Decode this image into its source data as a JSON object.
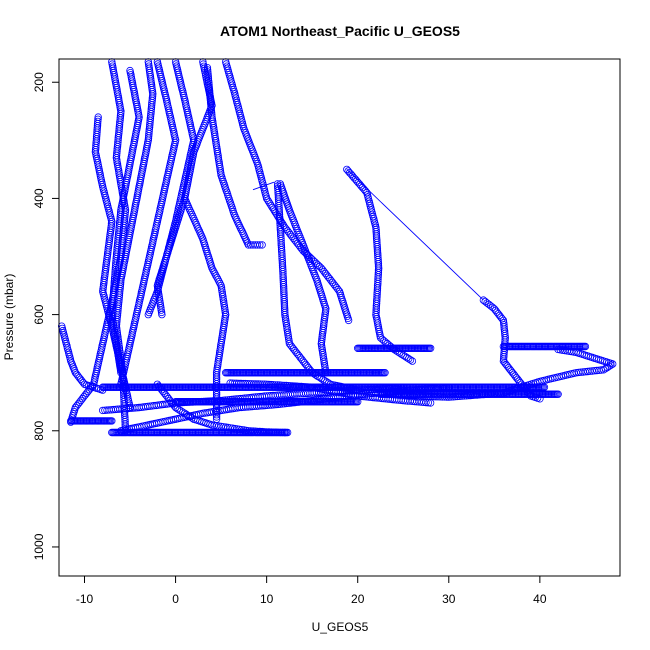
{
  "chart_data": {
    "type": "scatter",
    "title": "ATOM1 Northeast_Pacific U_GEOS5",
    "xlabel": "U_GEOS5",
    "ylabel": "Pressure (mbar)",
    "xlim": [
      -12.8,
      48.8
    ],
    "ylim": [
      1050,
      160
    ],
    "y_reversed": true,
    "x_ticks": [
      -10,
      0,
      10,
      20,
      30,
      40
    ],
    "x_tick_labels": [
      "-10",
      "0",
      "10",
      "20",
      "30",
      "40"
    ],
    "y_ticks": [
      200,
      400,
      600,
      800,
      1000
    ],
    "y_tick_labels": [
      "200",
      "400",
      "600",
      "800",
      "1000"
    ],
    "marker": "open-circle",
    "color": "#0000ff",
    "grid": false,
    "legend": "none",
    "series": [
      {
        "x": [
          -7,
          -6,
          -6.5,
          -5.5,
          -6,
          -7,
          -8,
          -9,
          -11,
          -11.5
        ],
        "y": [
          165,
          250,
          330,
          420,
          500,
          580,
          650,
          720,
          760,
          785
        ]
      },
      {
        "x": [
          -8.5,
          -8.8,
          -8,
          -7,
          -7.5,
          -8,
          -7,
          -6,
          -5
        ],
        "y": [
          260,
          320,
          380,
          440,
          500,
          560,
          620,
          690,
          760
        ]
      },
      {
        "x": [
          -5,
          -4,
          -5,
          -6,
          -6.5,
          -7,
          -6
        ],
        "y": [
          180,
          260,
          340,
          420,
          500,
          600,
          700
        ]
      },
      {
        "x": [
          -3,
          -2.5,
          -3,
          -4,
          -5,
          -6,
          -6.5,
          -5.8,
          -5.5
        ],
        "y": [
          165,
          220,
          300,
          380,
          460,
          540,
          620,
          700,
          800
        ]
      },
      {
        "x": [
          -2,
          -1,
          0,
          -1,
          -2,
          -3,
          -4,
          -5,
          -6
        ],
        "y": [
          165,
          230,
          300,
          370,
          440,
          510,
          580,
          650,
          720
        ]
      },
      {
        "x": [
          0,
          1,
          2,
          1,
          0,
          -1,
          -2,
          -3
        ],
        "y": [
          165,
          230,
          300,
          370,
          440,
          500,
          560,
          600
        ]
      },
      {
        "x": [
          3,
          4,
          2,
          1,
          0,
          -1,
          -2,
          -1.5
        ],
        "y": [
          165,
          240,
          320,
          400,
          450,
          500,
          550,
          600
        ]
      },
      {
        "x": [
          -12.5,
          -12,
          -11.5,
          -11,
          -10,
          -8
        ],
        "y": [
          620,
          650,
          680,
          700,
          720,
          730
        ]
      },
      {
        "x": [
          5.5,
          6.5,
          7.5,
          9,
          10,
          12,
          14,
          16,
          18,
          19
        ],
        "y": [
          165,
          220,
          280,
          340,
          400,
          450,
          490,
          520,
          560,
          610
        ]
      },
      {
        "x": [
          3.5,
          4,
          5,
          6.5,
          8,
          9.5
        ],
        "y": [
          175,
          260,
          360,
          430,
          480,
          480
        ]
      },
      {
        "x": [
          11.2,
          11.5,
          11.8,
          12,
          12.5,
          14,
          15,
          17,
          20
        ],
        "y": [
          375,
          450,
          530,
          600,
          650,
          680,
          700,
          720,
          730
        ]
      },
      {
        "x": [
          1,
          3,
          4,
          5,
          5.5,
          4.5,
          4.5
        ],
        "y": [
          400,
          470,
          520,
          550,
          600,
          700,
          780
        ]
      },
      {
        "x": [
          18.8,
          21,
          22,
          22.3,
          22,
          22.5,
          24,
          26
        ],
        "y": [
          350,
          390,
          450,
          520,
          600,
          640,
          660,
          680
        ]
      },
      {
        "x": [
          11.5,
          12.5,
          14,
          15.5,
          16.5,
          16,
          16.5
        ],
        "y": [
          375,
          420,
          480,
          540,
          590,
          650,
          700
        ]
      },
      {
        "x": [
          33.8,
          35,
          36,
          36.2,
          36,
          37,
          38,
          39,
          40
        ],
        "y": [
          575,
          590,
          610,
          640,
          680,
          700,
          720,
          740,
          745
        ]
      },
      {
        "x": [
          -2,
          0,
          2,
          4,
          6,
          8,
          10,
          12
        ],
        "y": [
          720,
          760,
          780,
          790,
          795,
          800,
          802,
          803
        ]
      },
      {
        "x": [
          6,
          10,
          15,
          20,
          25,
          28
        ],
        "y": [
          718,
          720,
          725,
          740,
          748,
          752
        ]
      },
      {
        "x": [
          22,
          26,
          30,
          36,
          40,
          44,
          47,
          48,
          46,
          44,
          42
        ],
        "y": [
          735,
          740,
          742,
          735,
          715,
          700,
          695,
          685,
          675,
          665,
          660
        ]
      },
      {
        "x": [
          -8,
          -4,
          0,
          5,
          10,
          15,
          20,
          23,
          25
        ],
        "y": [
          765,
          760,
          752,
          748,
          740,
          735,
          730,
          728,
          725
        ]
      },
      {
        "x": [
          -6,
          -3,
          0,
          3,
          7,
          11,
          15,
          19,
          22,
          26,
          30
        ],
        "y": [
          800,
          790,
          780,
          770,
          760,
          755,
          748,
          740,
          735,
          730,
          725
        ]
      }
    ],
    "dense_series": [
      {
        "x0": -7,
        "x1": 12.3,
        "y": 803
      },
      {
        "x0": -11.5,
        "x1": -7,
        "y": 783
      },
      {
        "x0": 0,
        "x1": 20,
        "y": 750
      },
      {
        "x0": -8,
        "x1": 40.5,
        "y": 725
      },
      {
        "x0": 5.5,
        "x1": 23,
        "y": 700
      },
      {
        "x0": 22.5,
        "x1": 42,
        "y": 737
      },
      {
        "x0": 20,
        "x1": 28,
        "y": 658
      },
      {
        "x0": 36,
        "x1": 45,
        "y": 655
      }
    ],
    "line_segments": [
      {
        "x": [
          18.8,
          33.8
        ],
        "y": [
          350,
          575
        ]
      },
      {
        "x": [
          8.5,
          10.8
        ],
        "y": [
          385,
          372
        ]
      }
    ]
  }
}
